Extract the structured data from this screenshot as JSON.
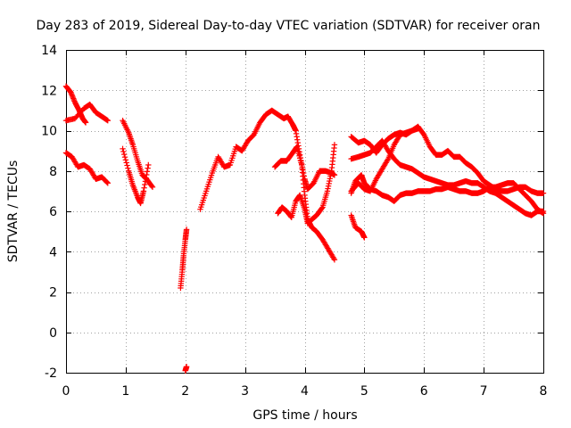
{
  "chart_data": {
    "type": "scatter",
    "title": "Day 283 of 2019, Sidereal Day-to-day VTEC variation (SDTVAR) for receiver oran",
    "xlabel": "GPS time / hours",
    "ylabel": "SDTVAR / TECUs",
    "xlim": [
      0,
      8
    ],
    "ylim": [
      -2,
      14
    ],
    "xticks": [
      "0",
      "1",
      "2",
      "3",
      "4",
      "5",
      "6",
      "7",
      "8"
    ],
    "yticks": [
      "-2",
      "0",
      "2",
      "4",
      "6",
      "8",
      "10",
      "12",
      "14"
    ],
    "grid": true,
    "marker": "plus",
    "color": "#ff0000",
    "series": [
      {
        "name": "seg-a1",
        "points": [
          [
            0.0,
            12.2
          ],
          [
            0.08,
            11.9
          ],
          [
            0.15,
            11.4
          ],
          [
            0.22,
            11.0
          ],
          [
            0.28,
            10.6
          ],
          [
            0.33,
            10.4
          ]
        ]
      },
      {
        "name": "seg-a2",
        "points": [
          [
            0.0,
            10.5
          ],
          [
            0.15,
            10.6
          ],
          [
            0.3,
            11.1
          ],
          [
            0.4,
            11.3
          ],
          [
            0.5,
            10.9
          ],
          [
            0.6,
            10.7
          ],
          [
            0.7,
            10.5
          ]
        ]
      },
      {
        "name": "seg-a3",
        "points": [
          [
            0.0,
            8.9
          ],
          [
            0.1,
            8.7
          ],
          [
            0.2,
            8.2
          ],
          [
            0.3,
            8.3
          ],
          [
            0.4,
            8.1
          ],
          [
            0.5,
            7.6
          ],
          [
            0.6,
            7.7
          ],
          [
            0.7,
            7.4
          ]
        ]
      },
      {
        "name": "seg-b1",
        "points": [
          [
            0.95,
            10.5
          ],
          [
            1.05,
            9.9
          ],
          [
            1.12,
            9.3
          ],
          [
            1.2,
            8.5
          ],
          [
            1.28,
            7.8
          ],
          [
            1.35,
            7.6
          ],
          [
            1.45,
            7.2
          ]
        ]
      },
      {
        "name": "seg-b2",
        "points": [
          [
            0.95,
            9.1
          ],
          [
            1.05,
            8.0
          ],
          [
            1.12,
            7.3
          ],
          [
            1.2,
            6.7
          ],
          [
            1.25,
            6.4
          ],
          [
            1.3,
            7.0
          ],
          [
            1.38,
            8.3
          ]
        ]
      },
      {
        "name": "seg-c1",
        "points": [
          [
            1.92,
            2.2
          ],
          [
            1.95,
            3.1
          ],
          [
            1.97,
            3.8
          ],
          [
            2.0,
            4.6
          ],
          [
            2.02,
            5.1
          ]
        ]
      },
      {
        "name": "seg-c2",
        "points": [
          [
            2.0,
            -1.9
          ],
          [
            2.02,
            -1.7
          ]
        ]
      },
      {
        "name": "seg-c3",
        "points": [
          [
            2.25,
            6.1
          ],
          [
            2.35,
            7.0
          ],
          [
            2.45,
            7.9
          ],
          [
            2.55,
            8.7
          ],
          [
            2.65,
            8.2
          ],
          [
            2.75,
            8.3
          ],
          [
            2.85,
            9.2
          ],
          [
            2.95,
            9.0
          ],
          [
            3.05,
            9.5
          ],
          [
            3.15,
            9.8
          ],
          [
            3.25,
            10.4
          ],
          [
            3.35,
            10.8
          ],
          [
            3.45,
            11.0
          ],
          [
            3.55,
            10.8
          ],
          [
            3.65,
            10.6
          ],
          [
            3.72,
            10.7
          ],
          [
            3.8,
            10.3
          ],
          [
            3.85,
            10.0
          ]
        ]
      },
      {
        "name": "seg-d1",
        "points": [
          [
            3.85,
            10.0
          ],
          [
            3.92,
            8.8
          ],
          [
            4.0,
            7.6
          ],
          [
            4.05,
            7.1
          ],
          [
            4.15,
            7.4
          ],
          [
            4.25,
            8.0
          ],
          [
            4.35,
            8.0
          ],
          [
            4.45,
            7.9
          ],
          [
            4.5,
            7.8
          ]
        ]
      },
      {
        "name": "seg-d2",
        "points": [
          [
            3.5,
            8.2
          ],
          [
            3.6,
            8.5
          ],
          [
            3.7,
            8.5
          ],
          [
            3.8,
            8.9
          ],
          [
            3.87,
            9.2
          ],
          [
            3.95,
            8.3
          ],
          [
            4.0,
            6.8
          ],
          [
            4.05,
            5.6
          ],
          [
            4.12,
            5.2
          ],
          [
            4.2,
            5.0
          ],
          [
            4.3,
            4.6
          ],
          [
            4.4,
            4.1
          ],
          [
            4.5,
            3.6
          ]
        ]
      },
      {
        "name": "seg-d3",
        "points": [
          [
            3.55,
            5.9
          ],
          [
            3.62,
            6.2
          ],
          [
            3.7,
            6.0
          ],
          [
            3.78,
            5.7
          ],
          [
            3.85,
            6.5
          ],
          [
            3.92,
            6.8
          ],
          [
            4.0,
            6.1
          ],
          [
            4.05,
            5.4
          ],
          [
            4.12,
            5.6
          ],
          [
            4.2,
            5.8
          ],
          [
            4.3,
            6.2
          ],
          [
            4.38,
            7.0
          ],
          [
            4.45,
            8.0
          ],
          [
            4.5,
            9.3
          ]
        ]
      },
      {
        "name": "seg-e1",
        "points": [
          [
            4.78,
            5.8
          ],
          [
            4.85,
            5.2
          ],
          [
            4.95,
            5.0
          ],
          [
            5.0,
            4.7
          ]
        ]
      },
      {
        "name": "seg-e2",
        "points": [
          [
            4.78,
            9.7
          ],
          [
            4.9,
            9.4
          ],
          [
            5.0,
            9.5
          ],
          [
            5.1,
            9.3
          ],
          [
            5.2,
            8.9
          ],
          [
            5.3,
            9.3
          ],
          [
            5.4,
            9.6
          ],
          [
            5.5,
            9.8
          ],
          [
            5.6,
            9.9
          ],
          [
            5.7,
            9.8
          ],
          [
            5.8,
            10.0
          ],
          [
            5.9,
            10.2
          ],
          [
            6.0,
            9.8
          ],
          [
            6.1,
            9.2
          ],
          [
            6.2,
            8.8
          ],
          [
            6.3,
            8.8
          ],
          [
            6.4,
            9.0
          ],
          [
            6.5,
            8.7
          ],
          [
            6.6,
            8.7
          ],
          [
            6.7,
            8.4
          ],
          [
            6.8,
            8.2
          ],
          [
            6.9,
            7.9
          ],
          [
            7.0,
            7.5
          ],
          [
            7.1,
            7.3
          ],
          [
            7.2,
            7.1
          ],
          [
            7.3,
            7.0
          ],
          [
            7.4,
            7.0
          ],
          [
            7.5,
            7.1
          ],
          [
            7.6,
            7.2
          ],
          [
            7.7,
            7.2
          ],
          [
            7.8,
            7.0
          ],
          [
            7.9,
            6.9
          ],
          [
            8.0,
            6.9
          ]
        ]
      },
      {
        "name": "seg-e3",
        "points": [
          [
            4.78,
            6.9
          ],
          [
            4.85,
            7.5
          ],
          [
            4.95,
            7.8
          ],
          [
            5.0,
            7.4
          ],
          [
            5.1,
            7.1
          ],
          [
            5.2,
            7.0
          ],
          [
            5.3,
            6.8
          ],
          [
            5.4,
            6.7
          ],
          [
            5.5,
            6.5
          ],
          [
            5.6,
            6.8
          ],
          [
            5.7,
            6.9
          ],
          [
            5.8,
            6.9
          ],
          [
            5.9,
            7.0
          ],
          [
            6.0,
            7.0
          ],
          [
            6.1,
            7.0
          ],
          [
            6.2,
            7.1
          ],
          [
            6.3,
            7.1
          ],
          [
            6.4,
            7.2
          ],
          [
            6.5,
            7.1
          ],
          [
            6.6,
            7.0
          ],
          [
            6.7,
            7.0
          ],
          [
            6.8,
            6.9
          ],
          [
            6.9,
            6.9
          ],
          [
            7.0,
            7.0
          ],
          [
            7.1,
            7.2
          ],
          [
            7.2,
            7.2
          ],
          [
            7.3,
            7.3
          ],
          [
            7.4,
            7.4
          ],
          [
            7.5,
            7.4
          ],
          [
            7.6,
            7.1
          ],
          [
            7.7,
            6.8
          ],
          [
            7.8,
            6.5
          ],
          [
            7.9,
            6.1
          ],
          [
            8.0,
            5.9
          ]
        ]
      },
      {
        "name": "seg-e4",
        "points": [
          [
            4.78,
            8.6
          ],
          [
            4.9,
            8.7
          ],
          [
            5.0,
            8.8
          ],
          [
            5.1,
            8.9
          ],
          [
            5.2,
            9.2
          ],
          [
            5.3,
            9.5
          ],
          [
            5.4,
            9.0
          ],
          [
            5.5,
            8.6
          ],
          [
            5.6,
            8.3
          ],
          [
            5.7,
            8.2
          ],
          [
            5.8,
            8.1
          ],
          [
            5.9,
            7.9
          ],
          [
            6.0,
            7.7
          ],
          [
            6.1,
            7.6
          ],
          [
            6.2,
            7.5
          ],
          [
            6.3,
            7.4
          ],
          [
            6.4,
            7.3
          ],
          [
            6.5,
            7.3
          ],
          [
            6.6,
            7.4
          ],
          [
            6.7,
            7.5
          ],
          [
            6.8,
            7.4
          ],
          [
            6.9,
            7.4
          ],
          [
            7.0,
            7.2
          ],
          [
            7.1,
            7.0
          ],
          [
            7.2,
            6.9
          ],
          [
            7.3,
            6.7
          ],
          [
            7.4,
            6.5
          ],
          [
            7.5,
            6.3
          ],
          [
            7.6,
            6.1
          ],
          [
            7.7,
            5.9
          ],
          [
            7.8,
            5.8
          ],
          [
            7.9,
            6.0
          ],
          [
            8.0,
            6.0
          ]
        ]
      },
      {
        "name": "seg-e5",
        "points": [
          [
            4.78,
            7.0
          ],
          [
            4.9,
            7.4
          ],
          [
            5.0,
            7.1
          ],
          [
            5.1,
            7.0
          ],
          [
            5.2,
            7.6
          ],
          [
            5.3,
            8.1
          ],
          [
            5.4,
            8.6
          ],
          [
            5.5,
            9.3
          ],
          [
            5.6,
            9.8
          ],
          [
            5.7,
            9.9
          ],
          [
            5.8,
            10.0
          ],
          [
            5.9,
            10.1
          ]
        ]
      }
    ]
  }
}
